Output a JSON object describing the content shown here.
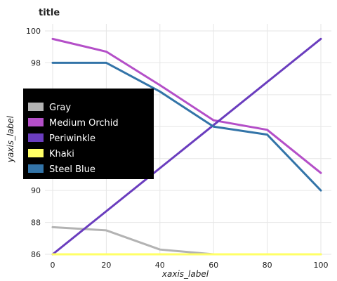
{
  "chart_data": {
    "type": "line",
    "title": "title",
    "xlabel": "xaxis_label",
    "ylabel": "yaxis_label",
    "xlim": [
      0,
      100
    ],
    "ylim": [
      86,
      100
    ],
    "xticks": [
      0,
      20,
      40,
      60,
      80,
      100
    ],
    "yticks": [
      86,
      88,
      90,
      92,
      94,
      96,
      98,
      100
    ],
    "grid": true,
    "legend_position": "top-left",
    "series": [
      {
        "name": "Gray",
        "color": "#b3b3b3",
        "x": [
          0,
          20,
          40,
          60,
          100
        ],
        "y": [
          87.7,
          87.5,
          86.3,
          86.0,
          86.0
        ]
      },
      {
        "name": "Medium Orchid",
        "color": "#b44fc8",
        "x": [
          0,
          20,
          40,
          60,
          80,
          100
        ],
        "y": [
          99.5,
          98.7,
          96.6,
          94.4,
          93.8,
          91.1
        ]
      },
      {
        "name": "Periwinkle",
        "color": "#6a3dbe",
        "x": [
          0,
          100
        ],
        "y": [
          86.0,
          99.5
        ]
      },
      {
        "name": "Khaki",
        "color": "#ffff66",
        "x": [
          0,
          100
        ],
        "y": [
          86.0,
          86.0
        ]
      },
      {
        "name": "Steel Blue",
        "color": "#3374a8",
        "x": [
          0,
          20,
          40,
          60,
          80,
          100
        ],
        "y": [
          98.0,
          98.0,
          96.2,
          94.0,
          93.5,
          90.0
        ]
      }
    ]
  }
}
